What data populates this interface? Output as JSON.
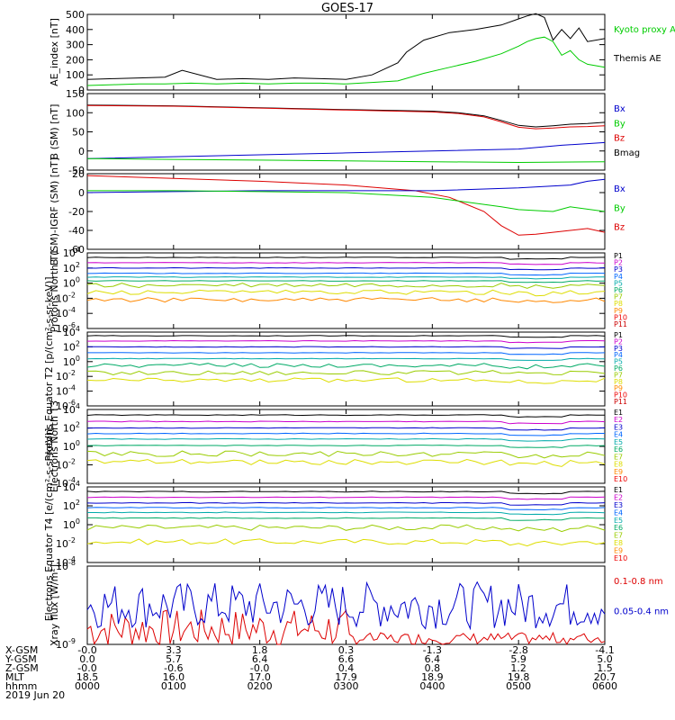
{
  "title": "GOES-17",
  "date_label": "2019 Jun 20",
  "colors": {
    "black": "#000000",
    "red": "#dd0000",
    "green": "#00cc00",
    "blue": "#0000cc",
    "teal": "#00aaaa",
    "orange": "#ff8800",
    "yellow": "#dddd00"
  },
  "chart_data": [
    {
      "type": "line",
      "ylabel": "AE_index [nT]",
      "ylim": [
        0,
        500
      ],
      "yticks": [
        "500",
        "400",
        "300",
        "200",
        "100",
        "0"
      ],
      "legend": [
        "Kyoto proxy AE",
        "Themis AE"
      ],
      "series": [
        {
          "name": "Themis AE",
          "color": "#000000",
          "x": [
            0,
            30,
            60,
            90,
            110,
            150,
            180,
            210,
            240,
            270,
            300,
            330,
            360,
            370,
            390,
            420,
            450,
            480,
            500,
            510,
            520,
            530,
            540,
            550,
            560,
            570,
            580,
            600
          ],
          "values": [
            70,
            75,
            80,
            85,
            130,
            70,
            75,
            70,
            80,
            75,
            70,
            100,
            180,
            250,
            330,
            380,
            400,
            430,
            470,
            490,
            505,
            480,
            330,
            400,
            340,
            410,
            320,
            340
          ]
        },
        {
          "name": "Kyoto proxy AE",
          "color": "#00cc00",
          "x": [
            0,
            30,
            60,
            90,
            120,
            150,
            180,
            210,
            240,
            270,
            300,
            330,
            360,
            390,
            420,
            450,
            480,
            500,
            510,
            520,
            530,
            540,
            550,
            560,
            570,
            580,
            600
          ],
          "values": [
            30,
            35,
            40,
            40,
            45,
            40,
            45,
            40,
            45,
            45,
            40,
            50,
            60,
            110,
            150,
            190,
            240,
            290,
            320,
            340,
            350,
            320,
            230,
            260,
            200,
            170,
            150
          ]
        }
      ]
    },
    {
      "type": "line",
      "ylabel": "B (SM) [nT]",
      "ylim": [
        -50,
        150
      ],
      "yticks": [
        "150",
        "100",
        "50",
        "0",
        "-50"
      ],
      "legend": [
        "Bx",
        "By",
        "Bz",
        "Bmag"
      ],
      "series": [
        {
          "name": "Bmag",
          "color": "#000000",
          "x": [
            0,
            100,
            200,
            300,
            400,
            430,
            460,
            480,
            500,
            520,
            540,
            560,
            580,
            600
          ],
          "values": [
            120,
            118,
            113,
            108,
            104,
            100,
            92,
            80,
            67,
            63,
            66,
            70,
            72,
            75
          ]
        },
        {
          "name": "Bz",
          "color": "#dd0000",
          "x": [
            0,
            100,
            200,
            300,
            400,
            430,
            460,
            480,
            500,
            520,
            540,
            560,
            580,
            600
          ],
          "values": [
            119,
            117,
            112,
            107,
            102,
            98,
            89,
            76,
            62,
            58,
            60,
            63,
            64,
            66
          ]
        },
        {
          "name": "Bx",
          "color": "#0000cc",
          "x": [
            0,
            100,
            200,
            300,
            400,
            500,
            550,
            600
          ],
          "values": [
            -20,
            -15,
            -10,
            -5,
            0,
            5,
            15,
            22
          ]
        },
        {
          "name": "By",
          "color": "#00cc00",
          "x": [
            0,
            100,
            200,
            300,
            400,
            500,
            600
          ],
          "values": [
            -20,
            -22,
            -24,
            -26,
            -28,
            -30,
            -28
          ]
        }
      ]
    },
    {
      "type": "line",
      "ylabel": "B (SM)-IGRF (SM) [nT]",
      "ylim": [
        -60,
        20
      ],
      "yticks": [
        "20",
        "0",
        "-20",
        "-40",
        "-60"
      ],
      "legend": [
        "Bx",
        "By",
        "Bz"
      ],
      "series": [
        {
          "name": "Bz",
          "color": "#dd0000",
          "x": [
            0,
            100,
            200,
            300,
            380,
            420,
            460,
            480,
            500,
            520,
            540,
            560,
            580,
            600
          ],
          "values": [
            18,
            15,
            12,
            8,
            2,
            -5,
            -20,
            -35,
            -45,
            -44,
            -42,
            -40,
            -38,
            -42
          ]
        },
        {
          "name": "Bx",
          "color": "#0000cc",
          "x": [
            0,
            100,
            200,
            300,
            400,
            500,
            560,
            580,
            600
          ],
          "values": [
            0,
            1,
            2,
            2,
            2,
            5,
            8,
            12,
            14
          ]
        },
        {
          "name": "By",
          "color": "#00cc00",
          "x": [
            0,
            100,
            200,
            300,
            400,
            480,
            500,
            540,
            560,
            600
          ],
          "values": [
            2,
            2,
            1,
            0,
            -5,
            -15,
            -18,
            -20,
            -15,
            -20
          ]
        }
      ]
    },
    {
      "type": "line",
      "ylabel": "Protons North T1",
      "ylim": [
        -6,
        4
      ],
      "yticks": [
        "10^4",
        "10^2",
        "10^0",
        "10^-2",
        "10^-4",
        "10^-6"
      ],
      "legend": [
        "P1",
        "P2",
        "P3",
        "P4",
        "P5",
        "P6",
        "P7",
        "P8",
        "P9",
        "P10",
        "P11"
      ],
      "levels": [
        3.4,
        2.7,
        2.0,
        1.3,
        0.8,
        0.3,
        -0.3,
        -1.2,
        -2.2
      ]
    },
    {
      "type": "line",
      "ylabel": "Protons Equator T2 [p/(cm²-s-sr-keV)]",
      "ylim": [
        -6,
        4
      ],
      "yticks": [
        "10^4",
        "10^2",
        "10^0",
        "10^-2",
        "10^-4",
        "10^-6"
      ],
      "legend": [
        "P1",
        "P2",
        "P3",
        "P4",
        "P5",
        "P6",
        "P7",
        "P8",
        "P9",
        "P10",
        "P11"
      ],
      "levels": [
        3.5,
        2.8,
        2.0,
        1.2,
        0.4,
        -0.5,
        -1.5,
        -2.5
      ]
    },
    {
      "type": "line",
      "ylabel": "Electrons North T3",
      "ylim": [
        -4,
        4
      ],
      "yticks": [
        "10^4",
        "10^2",
        "10^0",
        "10^-2",
        "10^-4"
      ],
      "legend": [
        "E1",
        "E2",
        "E3",
        "E4",
        "E5",
        "E6",
        "E7",
        "E8",
        "E9",
        "E10"
      ],
      "levels": [
        3.4,
        2.7,
        2.0,
        1.4,
        0.8,
        0.1,
        -0.8,
        -1.7
      ]
    },
    {
      "type": "line",
      "ylabel": "Electrons Equator T4 [e/(cm²-s-sr-keV)]",
      "ylim": [
        -4,
        4
      ],
      "yticks": [
        "10^4",
        "10^2",
        "10^0",
        "10^-2",
        "10^-4"
      ],
      "legend": [
        "E1",
        "E2",
        "E3",
        "E4",
        "E5",
        "E6",
        "E7",
        "E8",
        "E9",
        "E10"
      ],
      "levels": [
        3.5,
        2.9,
        2.3,
        1.8,
        1.3,
        0.7,
        -0.3,
        -1.8
      ]
    },
    {
      "type": "line",
      "ylabel": "Xray flux [W/m²]",
      "ylim": [
        -9,
        -8
      ],
      "yticks": [
        "10^-8",
        "10^-9"
      ],
      "legend": [
        "0.1-0.8 nm",
        "0.05-0.4 nm"
      ],
      "series": [
        {
          "name": "0.1-0.8 nm",
          "color": "#dd0000"
        },
        {
          "name": "0.05-0.4 nm",
          "color": "#0000cc"
        }
      ]
    }
  ],
  "x_axis": {
    "row_labels": [
      "X-GSM",
      "Y-GSM",
      "Z-GSM",
      "MLT",
      "hhmm"
    ],
    "rows": [
      [
        "-0.0",
        "3.3",
        "1.8",
        "0.3",
        "-1.3",
        "-2.8",
        "-4.1"
      ],
      [
        "0.0",
        "5.7",
        "6.4",
        "6.6",
        "6.4",
        "5.9",
        "5.0"
      ],
      [
        "-0.0",
        "-0.6",
        "-0.0",
        "0.4",
        "0.8",
        "1.2",
        "1.5"
      ],
      [
        "18.5",
        "16.0",
        "17.0",
        "17.9",
        "18.9",
        "19.8",
        "20.7"
      ],
      [
        "0000",
        "0100",
        "0200",
        "0300",
        "0400",
        "0500",
        "0600"
      ]
    ]
  }
}
